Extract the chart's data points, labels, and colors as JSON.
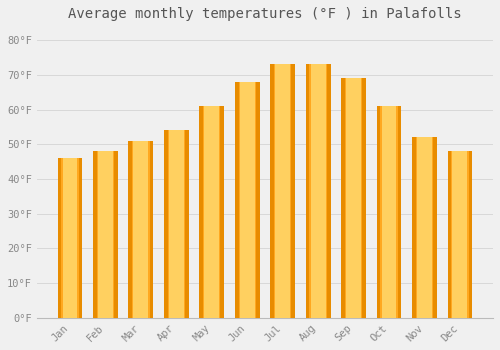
{
  "title": "Average monthly temperatures (°F ) in Palafolls",
  "months": [
    "Jan",
    "Feb",
    "Mar",
    "Apr",
    "May",
    "Jun",
    "Jul",
    "Aug",
    "Sep",
    "Oct",
    "Nov",
    "Dec"
  ],
  "values": [
    46,
    48,
    51,
    54,
    61,
    68,
    73,
    73,
    69,
    61,
    52,
    48
  ],
  "bar_color_main": "#FFA820",
  "bar_color_light": "#FFD060",
  "bar_color_dark": "#E88C00",
  "background_color": "#f0f0f0",
  "yticks": [
    0,
    10,
    20,
    30,
    40,
    50,
    60,
    70,
    80
  ],
  "ytick_labels": [
    "0°F",
    "10°F",
    "20°F",
    "30°F",
    "40°F",
    "50°F",
    "60°F",
    "70°F",
    "80°F"
  ],
  "ylim": [
    0,
    84
  ],
  "title_fontsize": 10,
  "tick_fontsize": 7.5,
  "grid_color": "#d8d8d8",
  "font_family": "monospace",
  "tick_color": "#888888",
  "title_color": "#555555"
}
